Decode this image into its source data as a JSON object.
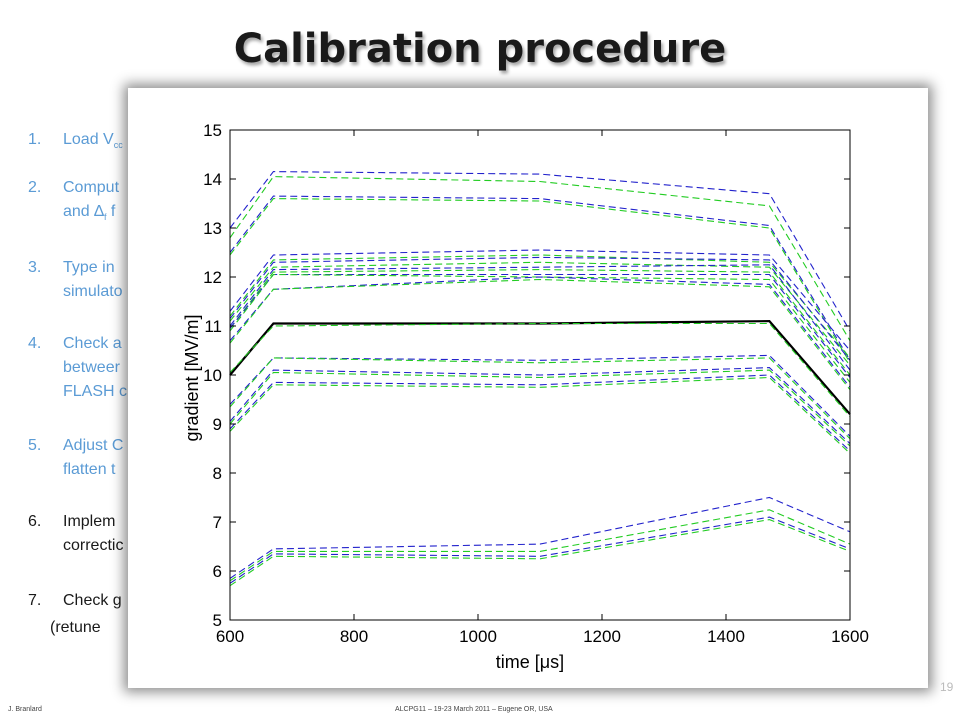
{
  "slide": {
    "title": "Calibration procedure",
    "steps": [
      {
        "num": "1.",
        "line1": "Load V",
        "sub": "cc",
        "line2": "",
        "line3": ""
      },
      {
        "num": "2.",
        "line1": "Comput",
        "line2": "and ∆",
        "sub2": "f",
        "line2b": " f",
        "line3": ""
      },
      {
        "num": "3.",
        "line1": "Type in",
        "line2": "simulato",
        "line3": ""
      },
      {
        "num": "4.",
        "line1": "Check a",
        "line2": "betweer",
        "line3": "FLASH c"
      },
      {
        "num": "5.",
        "line1": "Adjust C",
        "line2": "flatten t",
        "line3": ""
      },
      {
        "num": "6.",
        "line1": "Implem",
        "line2": "correctic",
        "line3": ""
      },
      {
        "num": "7.",
        "line1": "Check g",
        "line2": "(retune",
        "line3": ""
      }
    ],
    "footer_left": "J. Branlard",
    "footer_center": "ALCPG11 – 19-23 March 2011 – Eugene OR, USA",
    "page_number": "19"
  },
  "chart_data": {
    "type": "line",
    "title": "",
    "xlabel": "time [μs]",
    "ylabel": "gradient [MV/m]",
    "xlim": [
      600,
      1600
    ],
    "ylim": [
      5,
      15
    ],
    "xticks": [
      600,
      800,
      1000,
      1200,
      1400,
      1600
    ],
    "yticks": [
      5,
      6,
      7,
      8,
      9,
      10,
      11,
      12,
      13,
      14,
      15
    ],
    "colors": {
      "measured": "#2222cc",
      "simulated": "#22cc22",
      "sum_vector": "#000000"
    },
    "x": [
      600,
      670,
      1100,
      1470,
      1600
    ],
    "series": [
      {
        "style": "measured",
        "values": [
          13.0,
          14.15,
          14.1,
          13.7,
          10.9
        ]
      },
      {
        "style": "simulated",
        "values": [
          12.8,
          14.05,
          13.95,
          13.45,
          10.7
        ]
      },
      {
        "style": "measured",
        "values": [
          12.5,
          13.65,
          13.6,
          13.05,
          10.3
        ]
      },
      {
        "style": "simulated",
        "values": [
          12.45,
          13.6,
          13.55,
          13.0,
          10.25
        ]
      },
      {
        "style": "measured",
        "values": [
          11.3,
          12.45,
          12.55,
          12.45,
          10.5
        ]
      },
      {
        "style": "simulated",
        "values": [
          11.2,
          12.35,
          12.45,
          12.3,
          10.35
        ]
      },
      {
        "style": "measured",
        "values": [
          11.15,
          12.3,
          12.4,
          12.35,
          10.3
        ]
      },
      {
        "style": "simulated",
        "values": [
          11.1,
          12.2,
          12.3,
          12.2,
          10.2
        ]
      },
      {
        "style": "measured",
        "values": [
          11.0,
          12.15,
          12.2,
          12.25,
          10.1
        ]
      },
      {
        "style": "simulated",
        "values": [
          10.95,
          12.1,
          12.15,
          12.1,
          10.0
        ]
      },
      {
        "style": "measured",
        "values": [
          10.95,
          12.05,
          12.05,
          12.05,
          9.95
        ]
      },
      {
        "style": "simulated",
        "values": [
          10.9,
          12.05,
          12.0,
          11.95,
          9.85
        ]
      },
      {
        "style": "measured",
        "values": [
          10.7,
          11.75,
          12.0,
          11.85,
          9.75
        ]
      },
      {
        "style": "simulated",
        "values": [
          10.65,
          11.75,
          11.95,
          11.8,
          9.7
        ]
      },
      {
        "style": "sum_vector",
        "values": [
          10.0,
          11.05,
          11.05,
          11.1,
          9.2
        ]
      },
      {
        "style": "simulated",
        "values": [
          10.05,
          11.0,
          11.05,
          11.05,
          9.15
        ]
      },
      {
        "style": "measured",
        "values": [
          9.4,
          10.35,
          10.3,
          10.4,
          8.75
        ]
      },
      {
        "style": "simulated",
        "values": [
          9.35,
          10.35,
          10.25,
          10.35,
          8.7
        ]
      },
      {
        "style": "measured",
        "values": [
          9.05,
          10.1,
          10.0,
          10.15,
          8.6
        ]
      },
      {
        "style": "simulated",
        "values": [
          9.0,
          10.05,
          9.95,
          10.1,
          8.55
        ]
      },
      {
        "style": "measured",
        "values": [
          8.9,
          9.85,
          9.8,
          10.0,
          8.45
        ]
      },
      {
        "style": "simulated",
        "values": [
          8.85,
          9.8,
          9.75,
          9.95,
          8.4
        ]
      },
      {
        "style": "measured",
        "values": [
          5.85,
          6.45,
          6.55,
          7.5,
          6.8
        ]
      },
      {
        "style": "simulated",
        "values": [
          5.8,
          6.4,
          6.4,
          7.25,
          6.55
        ]
      },
      {
        "style": "measured",
        "values": [
          5.75,
          6.35,
          6.3,
          7.1,
          6.45
        ]
      },
      {
        "style": "simulated",
        "values": [
          5.7,
          6.3,
          6.25,
          7.05,
          6.4
        ]
      }
    ]
  }
}
